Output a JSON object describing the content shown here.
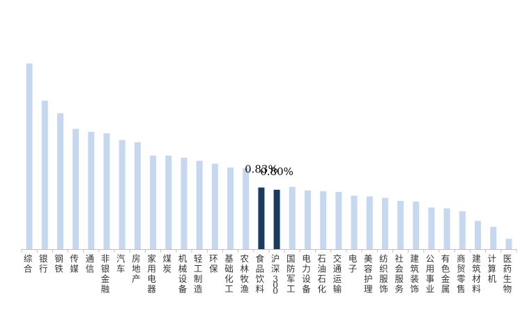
{
  "chart_data": {
    "type": "bar",
    "title": "",
    "xlabel": "",
    "ylabel": "",
    "ylim": [
      0,
      2.5
    ],
    "grid": false,
    "categories": [
      "综合",
      "银行",
      "钢铁",
      "传媒",
      "通信",
      "非银金融",
      "汽车",
      "房地产",
      "家用电器",
      "煤炭",
      "机械设备",
      "轻工制造",
      "环保",
      "基础化工",
      "农林牧渔",
      "食品饮料",
      "沪深300",
      "国防军工",
      "电力设备",
      "石油石化",
      "交通运输",
      "电子",
      "美容护理",
      "纺织服饰",
      "社会服务",
      "建筑装饰",
      "公用事业",
      "有色金属",
      "商贸零售",
      "建筑材料",
      "计算机",
      "医药生物"
    ],
    "values": [
      2.5,
      2.0,
      1.83,
      1.62,
      1.58,
      1.56,
      1.47,
      1.44,
      1.26,
      1.26,
      1.23,
      1.19,
      1.15,
      1.1,
      1.09,
      0.83,
      0.8,
      0.84,
      0.79,
      0.78,
      0.77,
      0.72,
      0.71,
      0.69,
      0.65,
      0.64,
      0.56,
      0.55,
      0.51,
      0.38,
      0.3,
      0.14
    ],
    "highlight": [
      "食品饮料",
      "沪深300"
    ],
    "data_labels": [
      {
        "category": "食品饮料",
        "text": "0.83%"
      },
      {
        "category": "沪深300",
        "text": "0.80%"
      }
    ],
    "colors": {
      "bar": "#c6d8f0",
      "highlight": "#1a3a5e",
      "axis": "#bfbfbf"
    }
  }
}
